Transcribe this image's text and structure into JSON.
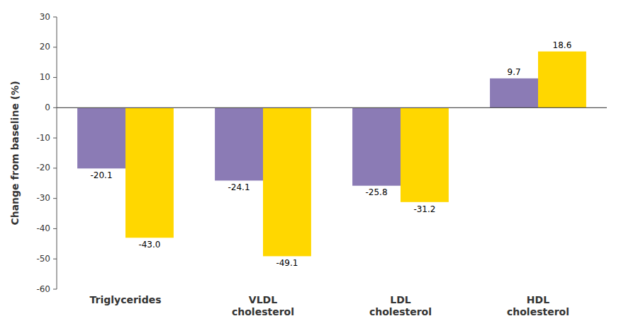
{
  "chart_data": {
    "type": "bar",
    "categories": [
      "Triglycerides",
      "VLDL\ncholesterol",
      "LDL\ncholesterol",
      "HDL\ncholesterol"
    ],
    "series": [
      {
        "color": "#8B7BB5",
        "values": [
          -20.1,
          -24.1,
          -25.8,
          9.7
        ]
      },
      {
        "color": "#FFD700",
        "values": [
          -43.0,
          -49.1,
          -31.2,
          18.6
        ],
        "value_labels": [
          "-43.0",
          "-49.1",
          "-31.2",
          "18.6"
        ]
      }
    ],
    "y_label": "Change from baseline (%)",
    "ylim": [
      -60,
      30
    ],
    "yticks": [
      -60,
      -50,
      -40,
      -30,
      -20,
      -10,
      0,
      10,
      20,
      30
    ],
    "data_labels": true,
    "grid": false
  }
}
